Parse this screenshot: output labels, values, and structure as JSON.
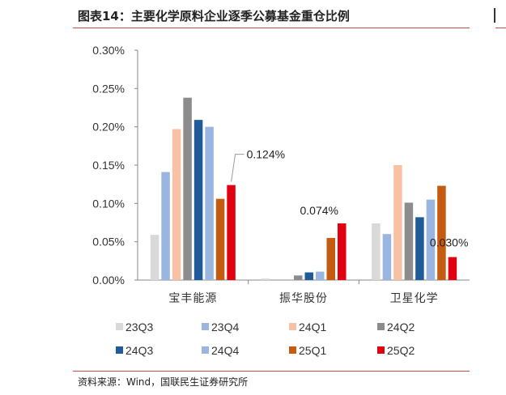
{
  "title": "图表14：主要化学原料企业逐季公募基金重仓比例",
  "source": "资料来源：Wind，国联民生证券研究所",
  "chart_data": {
    "type": "bar",
    "categories": [
      "宝丰能源",
      "振华股份",
      "卫星化学"
    ],
    "ylim": [
      0,
      0.3
    ],
    "yticks": [
      "0.00%",
      "0.05%",
      "0.10%",
      "0.15%",
      "0.20%",
      "0.25%",
      "0.30%"
    ],
    "grid": false,
    "legend_position": "bottom",
    "series": [
      {
        "name": "23Q3",
        "color": "#d9d9d9",
        "values": [
          0.059,
          0.002,
          0.074
        ]
      },
      {
        "name": "23Q4",
        "color": "#9ab5e0",
        "values": [
          0.141,
          0.0,
          0.06
        ]
      },
      {
        "name": "24Q1",
        "color": "#f8c1a3",
        "values": [
          0.197,
          0.0,
          0.15
        ]
      },
      {
        "name": "24Q2",
        "color": "#8c8c8c",
        "values": [
          0.238,
          0.006,
          0.101
        ]
      },
      {
        "name": "24Q3",
        "color": "#1f5a99",
        "values": [
          0.209,
          0.01,
          0.082
        ]
      },
      {
        "name": "24Q4",
        "color": "#9ab5e0",
        "values": [
          0.2,
          0.011,
          0.105
        ]
      },
      {
        "name": "25Q1",
        "color": "#c55a11",
        "values": [
          0.106,
          0.055,
          0.123
        ]
      },
      {
        "name": "25Q2",
        "color": "#e0000f",
        "values": [
          0.124,
          0.074,
          0.03
        ]
      }
    ],
    "annotations": [
      {
        "text": "0.124%",
        "category": 0,
        "series": 7
      },
      {
        "text": "0.074%",
        "category": 1,
        "series": 7
      },
      {
        "text": "0.030%",
        "category": 2,
        "series": 7
      }
    ]
  }
}
